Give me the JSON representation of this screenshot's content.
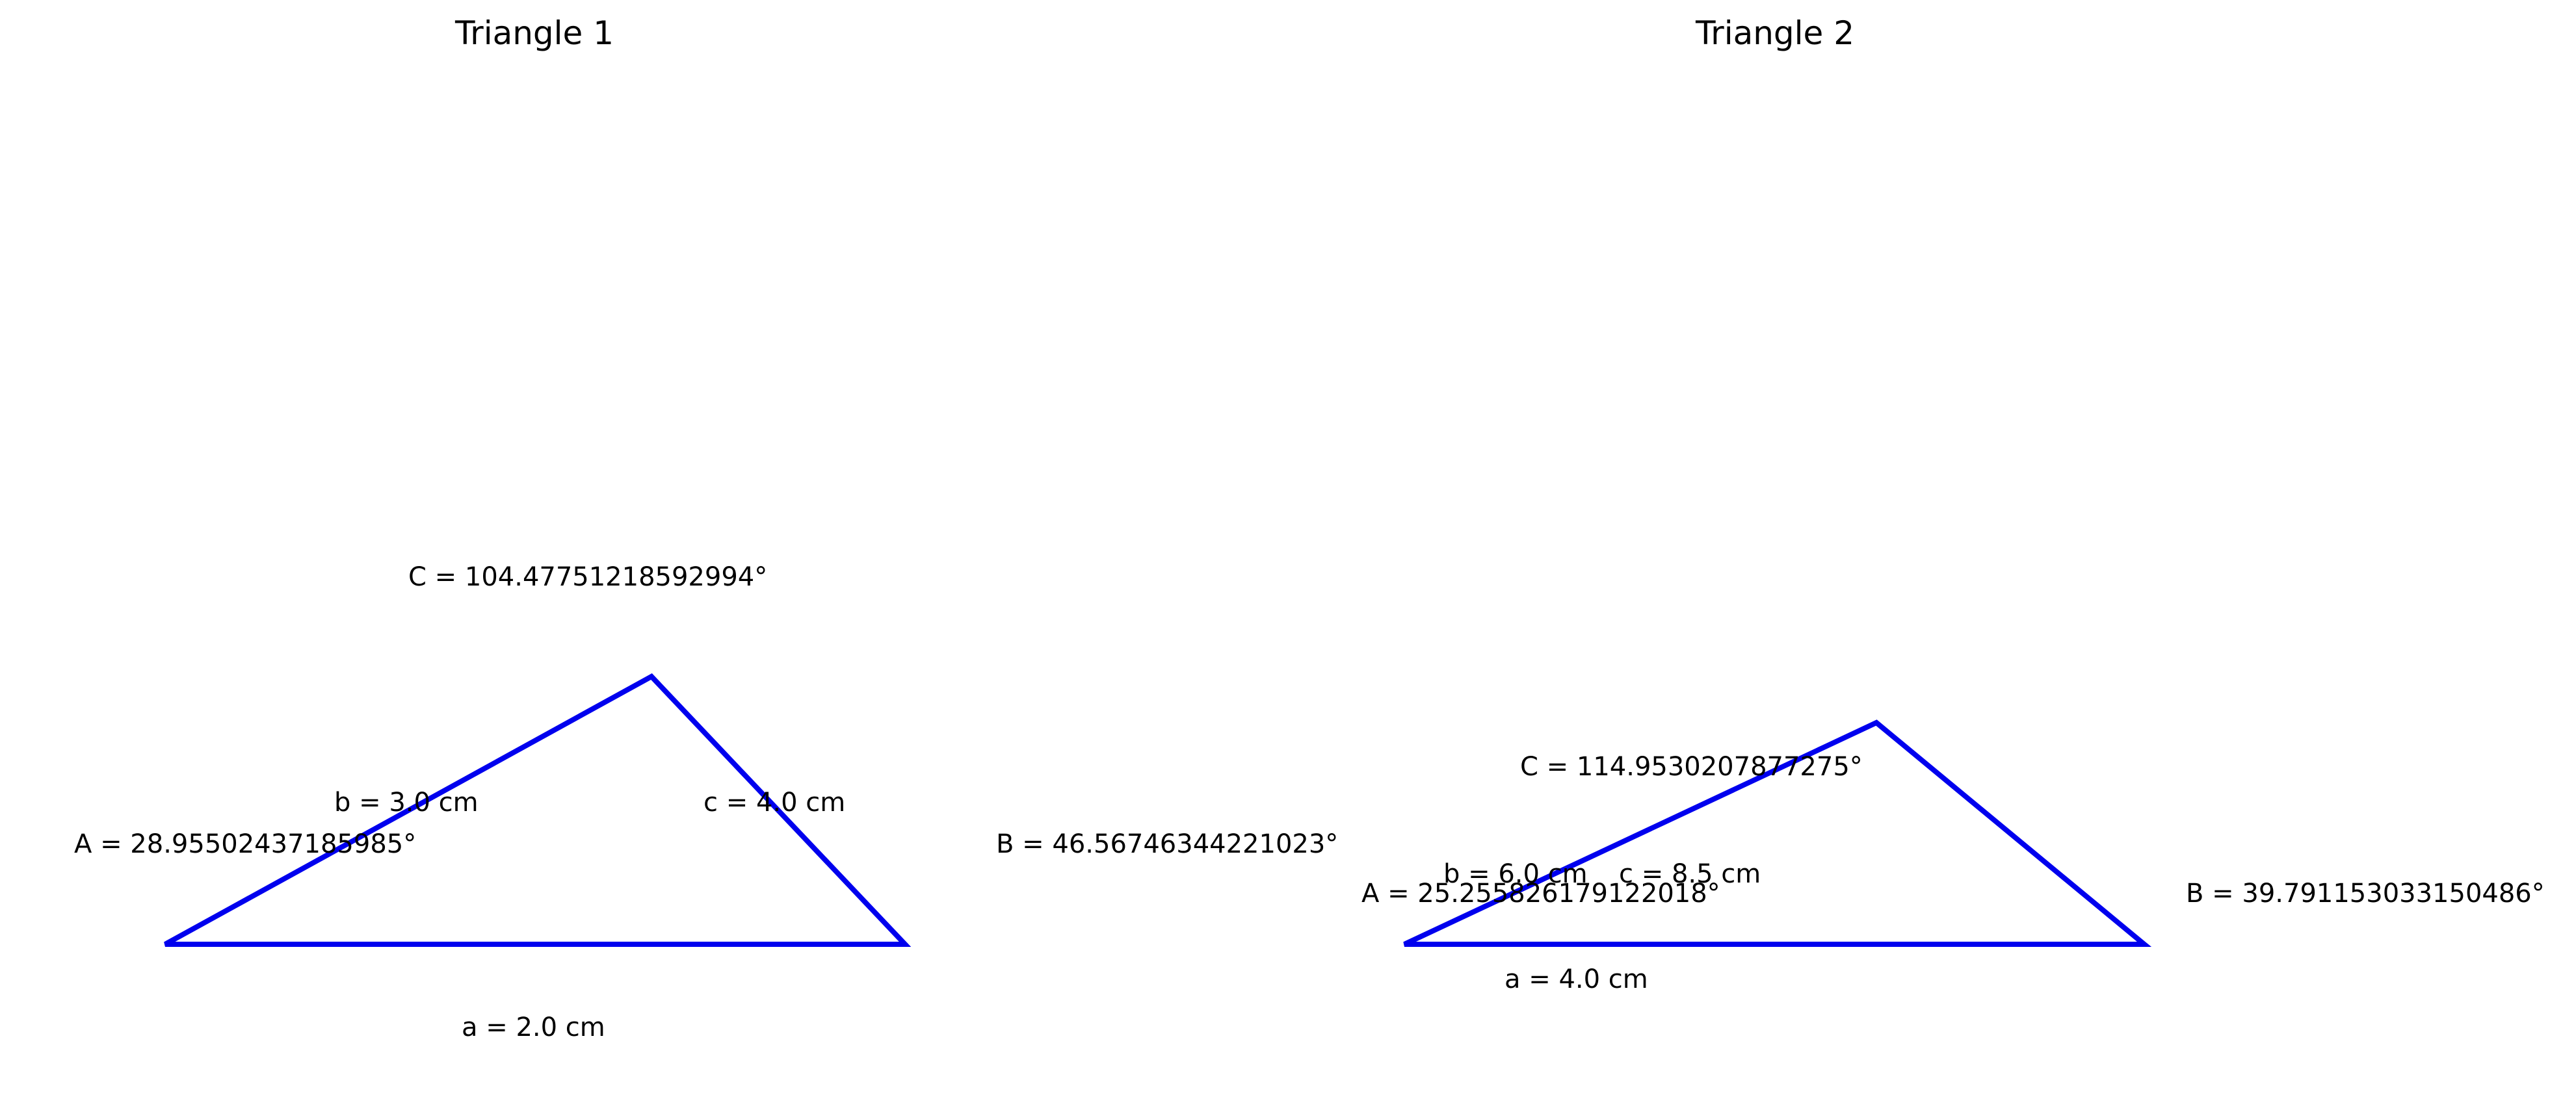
{
  "diagram": {
    "stroke_color": "#0000ee",
    "text_color": "#000000",
    "background": "#ffffff"
  },
  "triangles": [
    {
      "title": "Triangle 1",
      "side_a": "a = 2.0 cm",
      "side_b": "b = 3.0 cm",
      "side_c": "c = 4.0 cm",
      "angle_A": "A = 28.95502437185985°",
      "angle_B": "B = 46.56746344221023°",
      "angle_C": "C = 104.47751218592994°"
    },
    {
      "title": "Triangle 2",
      "side_a": "a = 4.0 cm",
      "side_b": "b = 6.0 cm",
      "side_c": "c = 8.5 cm",
      "angle_A": "A = 25.255826179122018°",
      "angle_B": "B = 39.791153033150486°",
      "angle_C": "C = 114.9530207877275°"
    }
  ]
}
